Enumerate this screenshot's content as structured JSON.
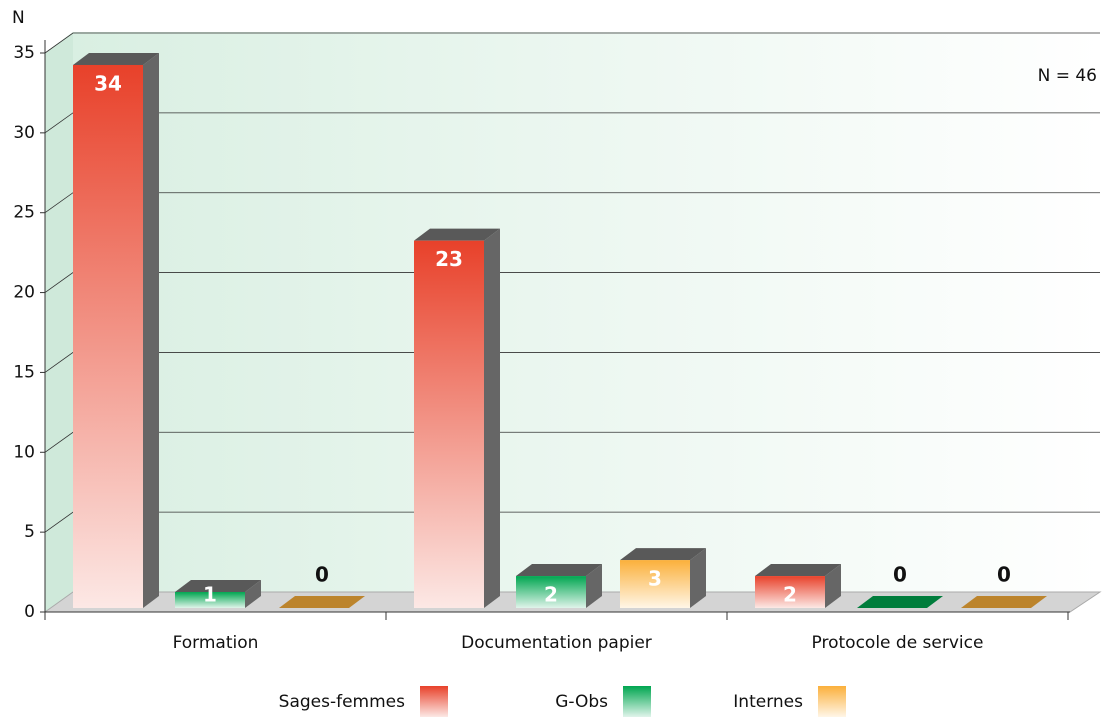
{
  "chart_data": {
    "type": "bar3d",
    "y_axis_label": "N",
    "annotation": "N = 46",
    "categories": [
      "Formation",
      "Documentation papier",
      "Protocole de service"
    ],
    "series": [
      {
        "name": "Sages-femmes",
        "color": "#e8412a",
        "values": [
          34,
          23,
          2
        ]
      },
      {
        "name": "G-Obs",
        "color": "#00a650",
        "values": [
          1,
          2,
          0
        ]
      },
      {
        "name": "Internes",
        "color": "#fbb03b",
        "values": [
          0,
          3,
          0
        ]
      }
    ],
    "ylim": [
      0,
      35
    ],
    "yticks": [
      0,
      5,
      10,
      15,
      20,
      25,
      30,
      35
    ],
    "grid": true
  }
}
